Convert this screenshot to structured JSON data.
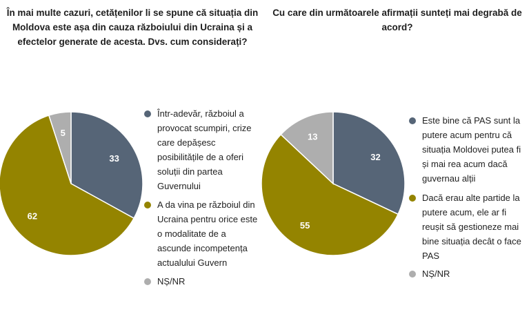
{
  "colors": {
    "grey_blue": "#566577",
    "olive": "#948400",
    "light_grey": "#aeaeae"
  },
  "chart_data": [
    {
      "type": "pie",
      "title": "În mai multe cazuri, cetățenilor li se spune că situația din Moldova este așa din cauza războiului din Ucraina și a efectelor generate de acesta. Dvs. cum considerați?",
      "categories": [
        "Într-adevăr, războiul a provocat scumpiri, crize care depășesc posibilitățile de a oferi soluții din partea Guvernului",
        "A da vina pe războiul din Ucraina pentru orice este o modalitate de a ascunde incompetența actualului Guvern",
        "NȘ/NR"
      ],
      "values": [
        33,
        62,
        5
      ],
      "value_labels": [
        "33",
        "62",
        "5"
      ],
      "colors": [
        "#566577",
        "#948400",
        "#aeaeae"
      ],
      "legend_position": "right"
    },
    {
      "type": "pie",
      "title": "Cu care din următoarele afirmații sunteți mai degrabă de acord?",
      "categories": [
        "Este bine că PAS sunt la putere acum pentru că situația Moldovei putea fi și mai rea acum dacă guvernau alții",
        "Dacă erau alte partide la putere acum, ele ar fi reușit să gestioneze mai bine situația decât o face PAS",
        "NȘ/NR"
      ],
      "values": [
        32,
        55,
        13
      ],
      "value_labels": [
        "32",
        "55",
        "13"
      ],
      "colors": [
        "#566577",
        "#948400",
        "#aeaeae"
      ],
      "legend_position": "right"
    }
  ]
}
